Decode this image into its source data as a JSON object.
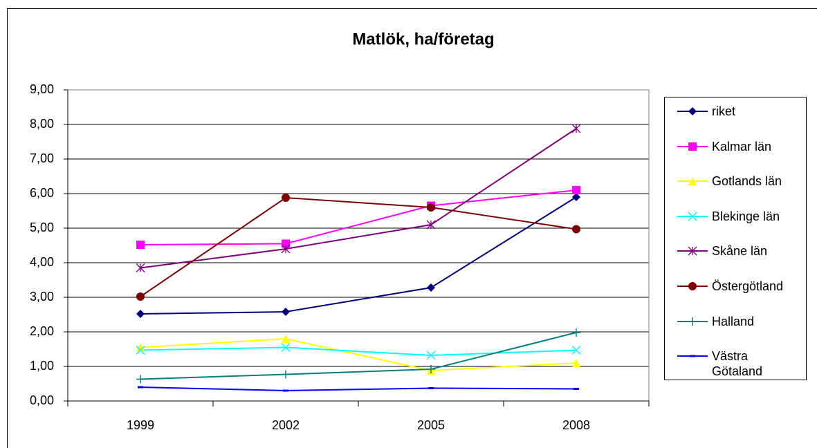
{
  "chart_data": {
    "type": "line",
    "title": "Matlök, ha/företag",
    "categories": [
      "1999",
      "2002",
      "2005",
      "2008"
    ],
    "series": [
      {
        "name": "riket",
        "color": "#000080",
        "marker": "diamond",
        "values": [
          2.52,
          2.58,
          3.28,
          5.9
        ]
      },
      {
        "name": "Kalmar län",
        "color": "#ff00ff",
        "marker": "square",
        "values": [
          4.52,
          4.55,
          5.65,
          6.1
        ]
      },
      {
        "name": "Gotlands län",
        "color": "#ffff00",
        "marker": "triangle",
        "values": [
          1.55,
          1.8,
          0.88,
          1.1
        ]
      },
      {
        "name": "Blekinge län",
        "color": "#00ffff",
        "marker": "x",
        "values": [
          1.47,
          1.55,
          1.32,
          1.47
        ]
      },
      {
        "name": "Skåne län",
        "color": "#800080",
        "marker": "asterisk",
        "values": [
          3.85,
          4.4,
          5.1,
          7.88
        ]
      },
      {
        "name": "Östergötland",
        "color": "#800000",
        "marker": "circle",
        "values": [
          3.02,
          5.88,
          5.6,
          4.97
        ]
      },
      {
        "name": "Halland",
        "color": "#008080",
        "marker": "plus",
        "values": [
          0.63,
          0.77,
          0.92,
          1.98
        ]
      },
      {
        "name": "Västra Götaland",
        "color": "#0000ff",
        "marker": "dash",
        "values": [
          0.4,
          0.3,
          0.37,
          0.35
        ]
      }
    ],
    "ylim": [
      0,
      9
    ],
    "yticks": [
      {
        "value": 0,
        "label": "0,00"
      },
      {
        "value": 1,
        "label": "1,00"
      },
      {
        "value": 2,
        "label": "2,00"
      },
      {
        "value": 3,
        "label": "3,00"
      },
      {
        "value": 4,
        "label": "4,00"
      },
      {
        "value": 5,
        "label": "5,00"
      },
      {
        "value": 6,
        "label": "6,00"
      },
      {
        "value": 7,
        "label": "7,00"
      },
      {
        "value": 8,
        "label": "8,00"
      },
      {
        "value": 9,
        "label": "9,00"
      }
    ],
    "grid": true,
    "legend": "right"
  }
}
